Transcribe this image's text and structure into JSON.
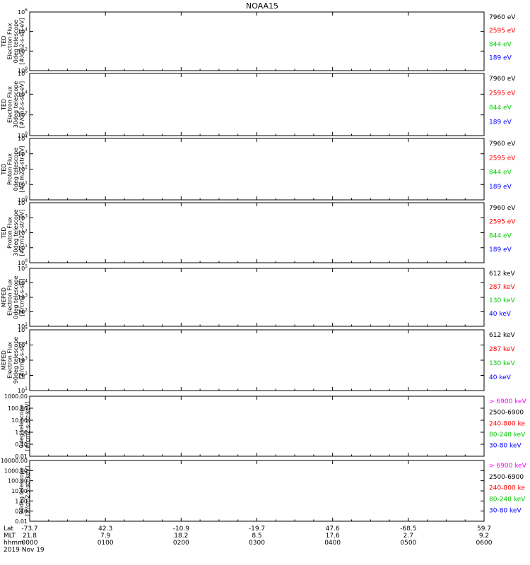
{
  "title": "NOAA15",
  "colors": {
    "black": "#000000",
    "red": "#ff0000",
    "green": "#00cc00",
    "blue": "#0000ff",
    "magenta": "#ff00ff"
  },
  "footer": {
    "row_labels": [
      "Lat",
      "MLT",
      "hhmm",
      "2019 Nov 19"
    ],
    "columns": [
      {
        "lat": "-73.7",
        "mlt": "21.8",
        "hhmm": "0000"
      },
      {
        "lat": "42.3",
        "mlt": "7.9",
        "hhmm": "0100"
      },
      {
        "lat": "-10.9",
        "mlt": "18.2",
        "hhmm": "0200"
      },
      {
        "lat": "-19.7",
        "mlt": "8.5",
        "hhmm": "0300"
      },
      {
        "lat": "47.6",
        "mlt": "17.6",
        "hhmm": "0400"
      },
      {
        "lat": "-68.5",
        "mlt": "2.7",
        "hhmm": "0500"
      },
      {
        "lat": "59.7",
        "mlt": "9.2",
        "hhmm": "0600"
      }
    ]
  },
  "chart_data": [
    {
      "type": "line",
      "ylabel": [
        "TED",
        "Electron Flux",
        "0deg telescope",
        "[#/cm2-s-str-eV]"
      ],
      "yscale": "log",
      "ylim": [
        1,
        1000000
      ],
      "yticks": [
        {
          "label": "10",
          "exp": "0",
          "value": 1
        },
        {
          "label": "10",
          "exp": "2",
          "value": 100
        },
        {
          "label": "10",
          "exp": "4",
          "value": 10000
        },
        {
          "label": "10",
          "exp": "6",
          "value": 1000000
        }
      ],
      "x": [
        0,
        1,
        2,
        3,
        4,
        5,
        6
      ],
      "legend": [
        {
          "text": "7960 eV",
          "color": "black"
        },
        {
          "text": "2595 eV",
          "color": "red"
        },
        {
          "text": "844 eV",
          "color": "green"
        },
        {
          "text": "189 eV",
          "color": "blue"
        }
      ]
    },
    {
      "type": "line",
      "ylabel": [
        "TED",
        "Electron Flux",
        "30deg telescope",
        "[#/cm2-s-str-eV]"
      ],
      "yscale": "log",
      "ylim": [
        1,
        1000000
      ],
      "yticks": [
        {
          "label": "10",
          "exp": "0",
          "value": 1
        },
        {
          "label": "10",
          "exp": "2",
          "value": 100
        },
        {
          "label": "10",
          "exp": "4",
          "value": 10000
        },
        {
          "label": "10",
          "exp": "6",
          "value": 1000000
        }
      ],
      "x": [
        0,
        1,
        2,
        3,
        4,
        5,
        6
      ],
      "legend": [
        {
          "text": "7960 eV",
          "color": "black"
        },
        {
          "text": "2595 eV",
          "color": "red"
        },
        {
          "text": "844 eV",
          "color": "green"
        },
        {
          "text": "189 eV",
          "color": "blue"
        }
      ]
    },
    {
      "type": "line",
      "ylabel": [
        "TED",
        "Proton Flux",
        "0deg telescope",
        "[#/cm2-s-str-eV]"
      ],
      "yscale": "log",
      "ylim": [
        1,
        10000
      ],
      "yticks": [
        {
          "label": "10",
          "exp": "0",
          "value": 1
        },
        {
          "label": "10",
          "exp": "1",
          "value": 10
        },
        {
          "label": "10",
          "exp": "2",
          "value": 100
        },
        {
          "label": "10",
          "exp": "3",
          "value": 1000
        },
        {
          "label": "10",
          "exp": "4",
          "value": 10000
        }
      ],
      "x": [
        0,
        1,
        2,
        3,
        4,
        5,
        6
      ],
      "legend": [
        {
          "text": "7960 eV",
          "color": "black"
        },
        {
          "text": "2595 eV",
          "color": "red"
        },
        {
          "text": "844 eV",
          "color": "green"
        },
        {
          "text": "189 eV",
          "color": "blue"
        }
      ]
    },
    {
      "type": "line",
      "ylabel": [
        "TED",
        "Proton Flux",
        "30deg telescope",
        "[#/cm2-s-str-eV]"
      ],
      "yscale": "log",
      "ylim": [
        1,
        10000
      ],
      "yticks": [
        {
          "label": "10",
          "exp": "0",
          "value": 1
        },
        {
          "label": "10",
          "exp": "1",
          "value": 10
        },
        {
          "label": "10",
          "exp": "2",
          "value": 100
        },
        {
          "label": "10",
          "exp": "3",
          "value": 1000
        },
        {
          "label": "10",
          "exp": "4",
          "value": 10000
        }
      ],
      "x": [
        0,
        1,
        2,
        3,
        4,
        5,
        6
      ],
      "legend": [
        {
          "text": "7960 eV",
          "color": "black"
        },
        {
          "text": "2595 eV",
          "color": "red"
        },
        {
          "text": "844 eV",
          "color": "green"
        },
        {
          "text": "189 eV",
          "color": "blue"
        }
      ]
    },
    {
      "type": "line",
      "ylabel": [
        "MEPED",
        "Electron Flux",
        "0deg telescope",
        "[#/cm2-s-str]"
      ],
      "yscale": "log",
      "ylim": [
        10,
        100000
      ],
      "yticks": [
        {
          "label": "10",
          "exp": "1",
          "value": 10
        },
        {
          "label": "10",
          "exp": "2",
          "value": 100
        },
        {
          "label": "10",
          "exp": "3",
          "value": 1000
        },
        {
          "label": "10",
          "exp": "4",
          "value": 10000
        },
        {
          "label": "10",
          "exp": "5",
          "value": 100000
        }
      ],
      "x": [
        0,
        1,
        2,
        3,
        4,
        5,
        6
      ],
      "legend": [
        {
          "text": "612 keV",
          "color": "black"
        },
        {
          "text": "287 keV",
          "color": "red"
        },
        {
          "text": "130 keV",
          "color": "green"
        },
        {
          "text": "40 keV",
          "color": "blue"
        }
      ]
    },
    {
      "type": "line",
      "ylabel": [
        "MEPED",
        "Electron Flux",
        "90deg telescope",
        "[#/cm2-s-str]"
      ],
      "yscale": "log",
      "ylim": [
        10,
        100000
      ],
      "yticks": [
        {
          "label": "10",
          "exp": "1",
          "value": 10
        },
        {
          "label": "10",
          "exp": "2",
          "value": 100
        },
        {
          "label": "10",
          "exp": "3",
          "value": 1000
        },
        {
          "label": "10",
          "exp": "4",
          "value": 10000
        },
        {
          "label": "10",
          "exp": "5",
          "value": 100000
        }
      ],
      "x": [
        0,
        1,
        2,
        3,
        4,
        5,
        6
      ],
      "legend": [
        {
          "text": "612 keV",
          "color": "black"
        },
        {
          "text": "287 keV",
          "color": "red"
        },
        {
          "text": "130 keV",
          "color": "green"
        },
        {
          "text": "40 keV",
          "color": "blue"
        }
      ]
    },
    {
      "type": "line",
      "ylabel": [
        "0deg telescope",
        "[#/cm2-s-str-keV]"
      ],
      "yscale": "log",
      "ylim": [
        0.01,
        1000
      ],
      "yticks": [
        {
          "label": "0.01",
          "value": 0.01
        },
        {
          "label": "0.10",
          "value": 0.1
        },
        {
          "label": "1.00",
          "value": 1
        },
        {
          "label": "10.00",
          "value": 10
        },
        {
          "label": "100.00",
          "value": 100
        },
        {
          "label": "1000.00",
          "value": 1000
        }
      ],
      "x": [
        0,
        1,
        2,
        3,
        4,
        5,
        6
      ],
      "legend": [
        {
          "text": "> 6900 keV",
          "color": "magenta"
        },
        {
          "text": "2500-6900",
          "color": "black"
        },
        {
          "text": "240-800 ke",
          "color": "red"
        },
        {
          "text": "80-240 keV",
          "color": "green"
        },
        {
          "text": "30-80 keV",
          "color": "blue"
        }
      ]
    },
    {
      "type": "line",
      "ylabel": [
        "90deg telescope",
        "[#/cm2-s-str-keV]"
      ],
      "yscale": "log",
      "ylim": [
        0.01,
        10000
      ],
      "yticks": [
        {
          "label": "0.01",
          "value": 0.01
        },
        {
          "label": "0.10",
          "value": 0.1
        },
        {
          "label": "1.00",
          "value": 1
        },
        {
          "label": "10.00",
          "value": 10
        },
        {
          "label": "100.00",
          "value": 100
        },
        {
          "label": "1000.00",
          "value": 1000
        },
        {
          "label": "10000.00",
          "value": 10000
        }
      ],
      "x": [
        0,
        1,
        2,
        3,
        4,
        5,
        6
      ],
      "legend": [
        {
          "text": "> 6900 keV",
          "color": "magenta"
        },
        {
          "text": "2500-6900",
          "color": "black"
        },
        {
          "text": "240-800 ke",
          "color": "red"
        },
        {
          "text": "80-240 keV",
          "color": "green"
        },
        {
          "text": "30-80 keV",
          "color": "blue"
        }
      ]
    }
  ]
}
